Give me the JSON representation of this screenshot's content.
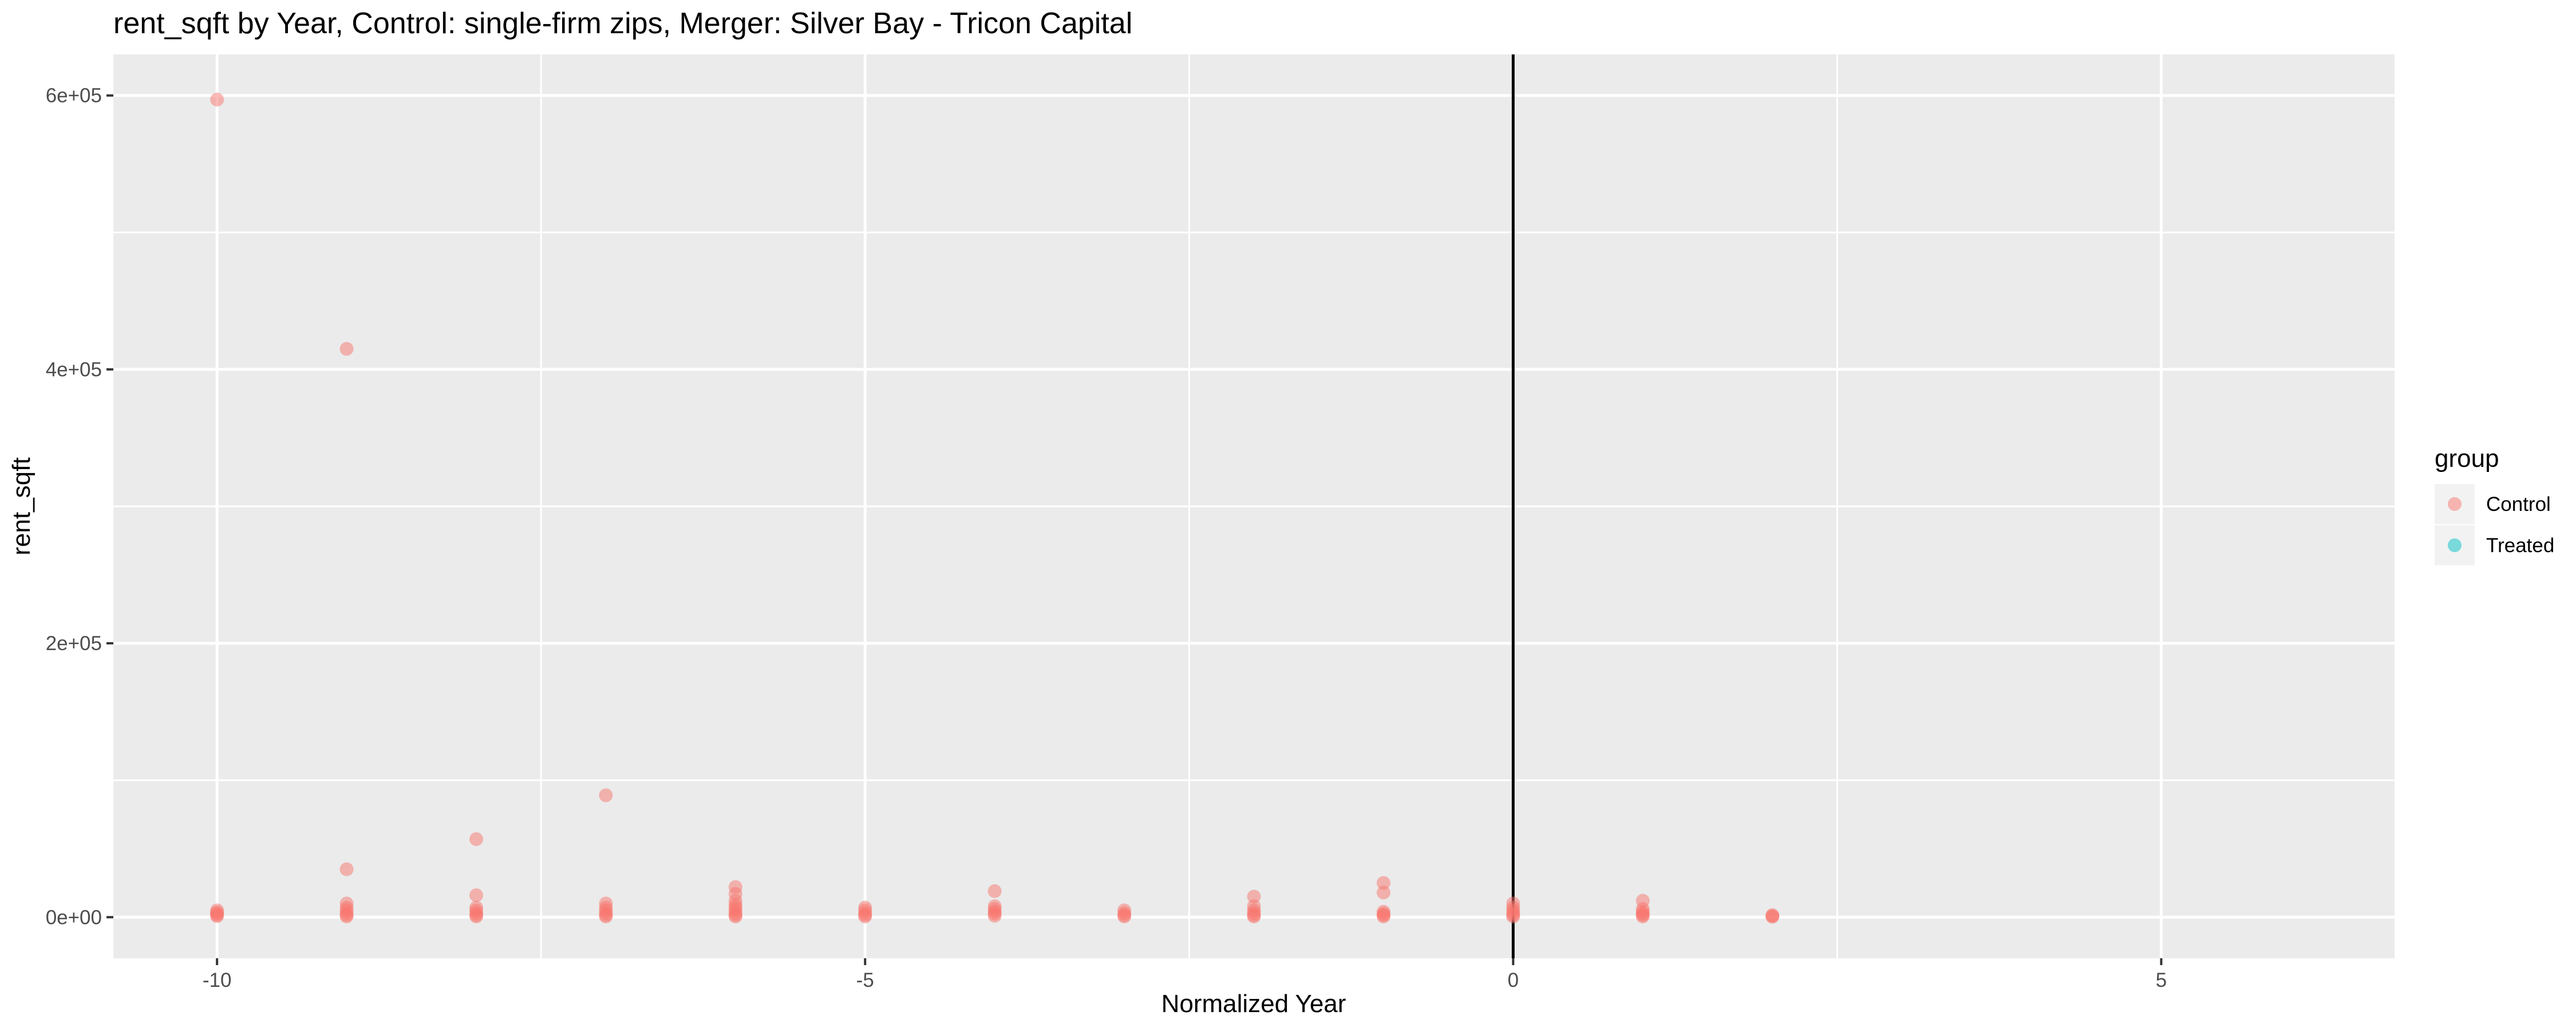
{
  "chart_data": {
    "type": "scatter",
    "title": "rent_sqft by Year, Control: single-firm zips, Merger: Silver Bay - Tricon Capital",
    "xlabel": "Normalized Year",
    "ylabel": "rent_sqft",
    "xlim": [
      -10.8,
      6.8
    ],
    "ylim": [
      -30000,
      630000
    ],
    "x_ticks": [
      -10,
      -5,
      0,
      5
    ],
    "x_tick_labels": [
      "-10",
      "-5",
      "0",
      "5"
    ],
    "y_ticks": [
      0,
      200000,
      400000,
      600000
    ],
    "y_tick_labels": [
      "0e+00",
      "2e+05",
      "4e+05",
      "6e+05"
    ],
    "grid": true,
    "vline_x": 0,
    "legend": {
      "title": "group",
      "position": "right",
      "entries": [
        {
          "label": "Control",
          "color": "#f8766d"
        },
        {
          "label": "Treated",
          "color": "#00bfc4"
        }
      ]
    },
    "series": [
      {
        "name": "Control",
        "color": "#f8766d",
        "points": [
          [
            -10,
            597000
          ],
          [
            -10,
            5000
          ],
          [
            -10,
            3500
          ],
          [
            -10,
            2500
          ],
          [
            -10,
            1500
          ],
          [
            -10,
            800
          ],
          [
            -9,
            415000
          ],
          [
            -9,
            35000
          ],
          [
            -9,
            10000
          ],
          [
            -9,
            7000
          ],
          [
            -9,
            5000
          ],
          [
            -9,
            3000
          ],
          [
            -9,
            1500
          ],
          [
            -9,
            500
          ],
          [
            -8,
            57000
          ],
          [
            -8,
            16000
          ],
          [
            -8,
            7000
          ],
          [
            -8,
            5000
          ],
          [
            -8,
            3000
          ],
          [
            -8,
            1500
          ],
          [
            -8,
            500
          ],
          [
            -7,
            89000
          ],
          [
            -7,
            10000
          ],
          [
            -7,
            7000
          ],
          [
            -7,
            5000
          ],
          [
            -7,
            3000
          ],
          [
            -7,
            1500
          ],
          [
            -7,
            500
          ],
          [
            -6,
            22000
          ],
          [
            -6,
            17000
          ],
          [
            -6,
            12000
          ],
          [
            -6,
            9000
          ],
          [
            -6,
            7000
          ],
          [
            -6,
            5000
          ],
          [
            -6,
            3000
          ],
          [
            -6,
            1500
          ],
          [
            -6,
            500
          ],
          [
            -5,
            7000
          ],
          [
            -5,
            5000
          ],
          [
            -5,
            3000
          ],
          [
            -5,
            1500
          ],
          [
            -5,
            500
          ],
          [
            -4,
            19000
          ],
          [
            -4,
            8000
          ],
          [
            -4,
            6000
          ],
          [
            -4,
            4000
          ],
          [
            -4,
            2500
          ],
          [
            -4,
            1000
          ],
          [
            -3,
            5000
          ],
          [
            -3,
            3000
          ],
          [
            -3,
            1500
          ],
          [
            -3,
            500
          ],
          [
            -2,
            15000
          ],
          [
            -2,
            8000
          ],
          [
            -2,
            5000
          ],
          [
            -2,
            3000
          ],
          [
            -2,
            1500
          ],
          [
            -2,
            500
          ],
          [
            -1,
            25000
          ],
          [
            -1,
            18000
          ],
          [
            -1,
            4000
          ],
          [
            -1,
            2500
          ],
          [
            -1,
            1500
          ],
          [
            -1,
            500
          ],
          [
            0,
            10000
          ],
          [
            0,
            7000
          ],
          [
            0,
            5000
          ],
          [
            0,
            3000
          ],
          [
            0,
            1500
          ],
          [
            0,
            500
          ],
          [
            1,
            12000
          ],
          [
            1,
            6000
          ],
          [
            1,
            4000
          ],
          [
            1,
            2500
          ],
          [
            1,
            1500
          ],
          [
            1,
            500
          ],
          [
            2,
            1500
          ],
          [
            2,
            800
          ],
          [
            2,
            300
          ]
        ]
      },
      {
        "name": "Treated",
        "color": "#00bfc4",
        "points": []
      }
    ]
  }
}
